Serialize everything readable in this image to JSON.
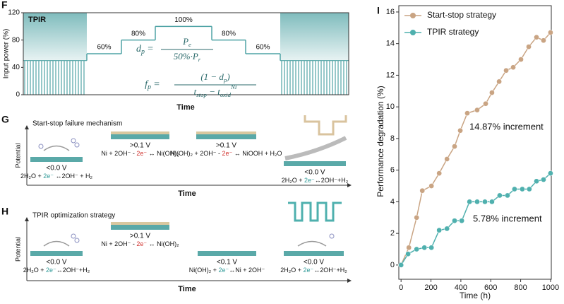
{
  "chart_data": [
    {
      "type": "step",
      "panel_label": "F",
      "title": "TPIR",
      "y_label": "Input power (%)",
      "x_label": "Time",
      "ylim": [
        0,
        120
      ],
      "yticks": [
        0,
        40,
        80,
        120
      ],
      "values": [
        60,
        80,
        100,
        80,
        60
      ],
      "value_labels": [
        "60%",
        "80%",
        "100%",
        "80%",
        "60%"
      ],
      "pulse_level": 50,
      "color": "#4fa3a5",
      "equations": [
        {
          "lhs": {
            "base": "d",
            "sub": "p"
          },
          "eq": "=",
          "num": [
            {
              "base": "P",
              "sub": "e"
            }
          ],
          "den": [
            {
              "base": "50%·P",
              "sub": "r"
            }
          ]
        },
        {
          "lhs": {
            "base": "f",
            "sub": "p"
          },
          "eq": "=",
          "num": [
            {
              "base": "(1 − d",
              "sub": "p"
            },
            {
              "base": ")"
            }
          ],
          "den": [
            {
              "base": "t",
              "sub": "stop"
            },
            {
              "base": " − "
            },
            {
              "base": "t",
              "sub": "oxid",
              "sup": "Ni"
            }
          ]
        }
      ]
    },
    {
      "type": "line",
      "panel_label": "I",
      "x_label": "Time (h)",
      "y_label": "Performance degradation (%)",
      "xlim": [
        -15,
        1005
      ],
      "xticks": [
        0,
        200,
        400,
        600,
        800,
        1000
      ],
      "ylim": [
        -0.9,
        16.4
      ],
      "yticks": [
        0,
        2,
        4,
        6,
        8,
        10,
        12,
        14,
        16
      ],
      "legend": "upper left",
      "series": [
        {
          "name": "Start-stop strategy",
          "color": "#c9a483",
          "x": [
            0,
            52,
            104,
            142,
            203,
            255,
            307,
            358,
            396,
            443,
            509,
            566,
            608,
            656,
            703,
            750,
            802,
            854,
            906,
            953,
            1000
          ],
          "values": [
            0,
            1.1,
            3.0,
            4.7,
            5.0,
            5.8,
            6.7,
            7.5,
            8.5,
            9.6,
            9.8,
            10.2,
            10.9,
            11.6,
            12.3,
            12.5,
            13.0,
            13.8,
            14.4,
            14.2,
            14.7
          ]
        },
        {
          "name": "TPIR  strategy",
          "color": "#4fb0ae",
          "x": [
            0,
            47,
            104,
            156,
            203,
            255,
            307,
            358,
            406,
            458,
            509,
            561,
            608,
            660,
            712,
            759,
            811,
            858,
            906,
            953,
            1000
          ],
          "values": [
            0,
            0.7,
            1.0,
            1.1,
            1.1,
            2.2,
            2.3,
            2.8,
            2.8,
            4.0,
            4.0,
            4.0,
            4.0,
            4.4,
            4.4,
            4.8,
            4.8,
            4.8,
            5.3,
            5.4,
            5.8
          ]
        }
      ],
      "annotations": [
        "14.87% increment",
        "5.78% increment"
      ]
    }
  ],
  "panel_g": {
    "panel_label": "G",
    "title": "Start-stop failure mechanism",
    "title_color": "#d98a3d",
    "y_label": "Potential",
    "x_label": "Time",
    "stages": [
      {
        "potential": "<0.0 V",
        "equation": [
          {
            "text": "2H₂O + "
          },
          {
            "text": "2e⁻",
            "color": "#2f9a98"
          },
          {
            "text": " ↔2OH⁻ + H₂"
          }
        ]
      },
      {
        "potential": ">0.1 V",
        "equation": [
          {
            "text": "Ni + 2OH⁻ - "
          },
          {
            "text": "2e⁻",
            "color": "#d0312d"
          },
          {
            "text": " ↔ Ni(OH)₂"
          }
        ]
      },
      {
        "potential": ">0.1 V",
        "equation": [
          {
            "text": "Ni(OH)₂ + 2OH⁻ - "
          },
          {
            "text": "2e⁻",
            "color": "#d0312d"
          },
          {
            "text": " ↔ NiOOH + H₂O"
          }
        ]
      },
      {
        "potential": "<0.0 V",
        "equation": [
          {
            "text": "2H₂O + "
          },
          {
            "text": "2e⁻",
            "color": "#2f9a98"
          },
          {
            "text": "↔2OH⁻+H₂"
          }
        ]
      }
    ]
  },
  "panel_h": {
    "panel_label": "H",
    "title": "TPIR optimization strategy",
    "title_color": "#2f8f8e",
    "y_label": "Potential",
    "x_label": "Time",
    "stages": [
      {
        "potential": "<0.0 V",
        "equation": [
          {
            "text": "2H₂O + "
          },
          {
            "text": "2e⁻",
            "color": "#2f9a98"
          },
          {
            "text": "↔2OH⁻+H₂"
          }
        ]
      },
      {
        "potential": ">0.1 V",
        "equation": [
          {
            "text": "Ni + 2OH⁻ - "
          },
          {
            "text": "2e⁻",
            "color": "#d0312d"
          },
          {
            "text": " ↔ Ni(OH)₂"
          }
        ]
      },
      {
        "potential": "<0.1 V",
        "equation": [
          {
            "text": "Ni(OH)₂ + "
          },
          {
            "text": "2e⁻",
            "color": "#2f9a98"
          },
          {
            "text": "↔Ni + 2OH⁻"
          }
        ]
      },
      {
        "potential": "<0.0 V",
        "equation": [
          {
            "text": "2H₂O + "
          },
          {
            "text": "2e⁻",
            "color": "#2f9a98"
          },
          {
            "text": "↔2OH⁻+H₂"
          }
        ]
      }
    ]
  }
}
